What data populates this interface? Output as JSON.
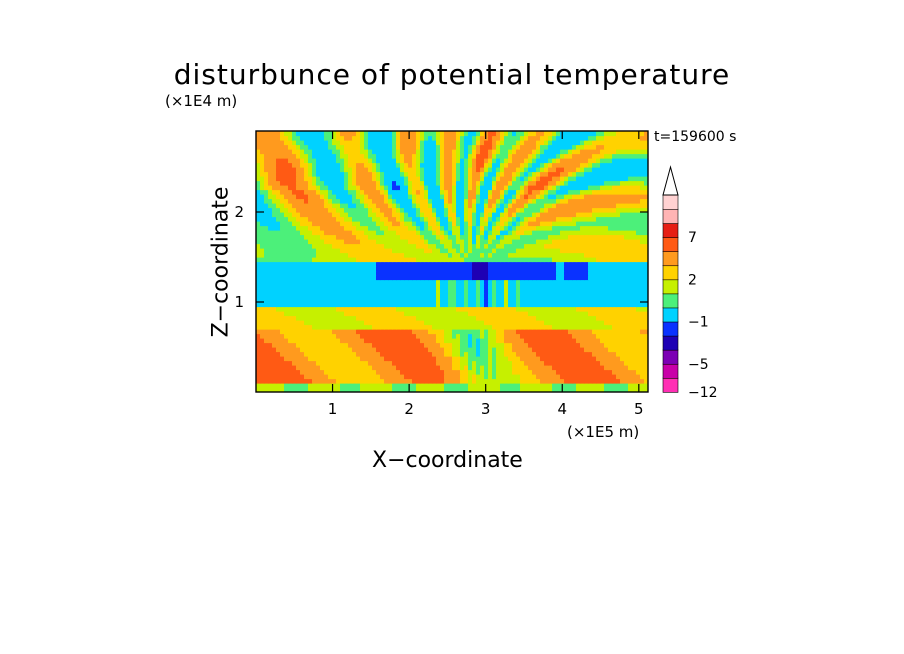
{
  "chart_data": {
    "type": "heatmap",
    "title": "disturbunce of potential temperature",
    "xlabel": "X−coordinate",
    "ylabel": "Z−coordinate",
    "x_scale_label": "(×1E5 m)",
    "y_scale_label": "(×1E4 m)",
    "time_label": "t=159600 s",
    "xlim": [
      0,
      5.12
    ],
    "ylim": [
      0,
      2.9
    ],
    "x_ticks": [
      "1",
      "2",
      "3",
      "4",
      "5"
    ],
    "y_ticks": [
      "1",
      "2"
    ],
    "colorbar_labels": [
      "7",
      "2",
      "−1",
      "−5",
      "−12"
    ],
    "colorbar_colors": [
      "#ff2fb4",
      "#c800a8",
      "#7c00b4",
      "#1e00b4",
      "#0a32ff",
      "#00d2ff",
      "#4cf07a",
      "#c6f000",
      "#ffd200",
      "#ff9a1e",
      "#ff5a14",
      "#e61e14",
      "#ffb4b4",
      "#ffd2d2"
    ],
    "bands": [
      {
        "z": [
          0.0,
          0.12
        ],
        "value": 1.2,
        "label": "near-surface green/yellow"
      },
      {
        "z": [
          0.12,
          0.7
        ],
        "value": 3.5,
        "label": "warm orange layer"
      },
      {
        "z": [
          0.7,
          0.95
        ],
        "value": 1.8,
        "label": "yellow layer"
      },
      {
        "z": [
          0.95,
          1.25
        ],
        "value": -0.5,
        "label": "cyan layer"
      },
      {
        "z": [
          1.25,
          1.45
        ],
        "value": -3.5,
        "label": "cold blue band near x=3"
      },
      {
        "z": [
          1.45,
          2.2
        ],
        "value": 1.5,
        "label": "mixed green/yellow waves"
      },
      {
        "z": [
          2.2,
          2.9
        ],
        "value": 3.0,
        "label": "upper wave field"
      }
    ]
  }
}
